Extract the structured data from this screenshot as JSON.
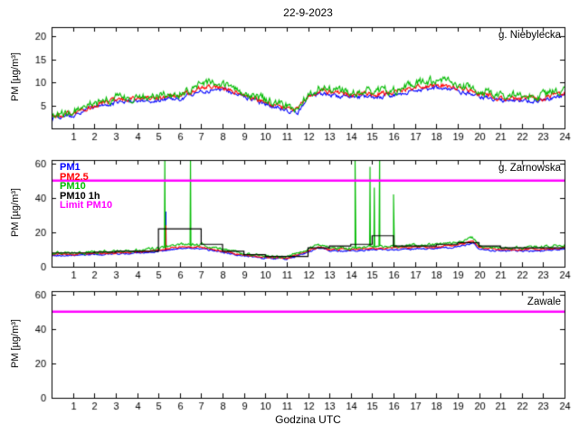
{
  "chart_data": {
    "type": "line",
    "figure_title": "22-9-2023",
    "xlabel": "Godzina UTC",
    "ylabel": "PM [µg/m³]",
    "xlim": [
      0,
      24
    ],
    "x_ticks": [
      1,
      2,
      3,
      4,
      5,
      6,
      7,
      8,
      9,
      10,
      11,
      12,
      13,
      14,
      15,
      16,
      17,
      18,
      19,
      20,
      21,
      22,
      23,
      24
    ],
    "grid": false,
    "subplots": [
      {
        "station": "g. Niebylecka",
        "ylim": [
          0,
          22
        ],
        "y_ticks": [
          5,
          10,
          15,
          20
        ],
        "x": [
          0,
          1,
          2,
          3,
          4,
          5,
          6,
          7,
          8,
          9,
          10,
          11,
          11.5,
          12,
          12.5,
          13,
          14,
          15,
          16,
          17,
          18,
          19,
          20,
          21,
          22,
          23,
          24
        ],
        "series": [
          {
            "name": "PM1",
            "color": "#0000ff",
            "noise": 0.45,
            "values": [
              2.1,
              2.9,
              4.6,
              5.6,
              6.0,
              6.0,
              6.5,
              8.2,
              8.3,
              6.9,
              5.2,
              4.0,
              3.4,
              6.4,
              7.6,
              7.3,
              6.8,
              6.9,
              7.1,
              8.3,
              8.8,
              8.2,
              7.0,
              6.0,
              5.9,
              6.1,
              7.3
            ]
          },
          {
            "name": "PM2.5",
            "color": "#ff0000",
            "noise": 0.5,
            "values": [
              2.4,
              3.2,
              5.0,
              6.1,
              6.5,
              6.5,
              7.0,
              8.9,
              9.0,
              7.4,
              5.6,
              4.4,
              3.8,
              7.0,
              8.2,
              7.9,
              7.4,
              7.5,
              7.7,
              9.0,
              9.6,
              8.9,
              7.6,
              6.5,
              6.4,
              6.6,
              7.9
            ]
          },
          {
            "name": "PM10",
            "color": "#00bb00",
            "noise": 0.85,
            "values": [
              2.8,
              3.6,
              5.5,
              6.6,
              7.0,
              7.0,
              7.6,
              9.6,
              9.7,
              8.0,
              6.2,
              5.0,
              4.2,
              7.6,
              8.9,
              8.6,
              8.0,
              8.1,
              8.3,
              9.7,
              10.4,
              9.6,
              8.2,
              7.1,
              7.0,
              7.2,
              8.6
            ]
          }
        ]
      },
      {
        "station": "g. Zarnowska",
        "ylim": [
          0,
          62
        ],
        "y_ticks": [
          0,
          20,
          40,
          60
        ],
        "x": [
          0,
          1,
          2,
          3,
          4,
          5,
          6,
          7,
          8,
          9,
          10,
          11,
          12,
          12.5,
          13,
          14,
          15,
          16,
          17,
          18,
          19,
          19.7,
          20,
          21,
          22,
          23,
          24
        ],
        "series": [
          {
            "name": "PM1",
            "color": "#0000ff",
            "noise": 0.45,
            "values": [
              6.5,
              6.5,
              7.0,
              7.4,
              7.9,
              8.8,
              10.5,
              10.5,
              8.3,
              6.3,
              5.0,
              4.6,
              8.3,
              10.8,
              9.2,
              9.2,
              9.9,
              9.9,
              10.3,
              10.8,
              11.5,
              13.8,
              10.0,
              9.2,
              9.2,
              9.5,
              10.5
            ],
            "spikes": [
              [
                5.35,
                32
              ]
            ]
          },
          {
            "name": "PM2.5",
            "color": "#ff0000",
            "noise": 0.5,
            "values": [
              7.0,
              7.0,
              7.5,
              8.0,
              8.5,
              9.5,
              11.5,
              11.5,
              9.0,
              6.8,
              5.4,
              5.0,
              9.0,
              11.8,
              10.0,
              10.0,
              10.8,
              10.8,
              11.2,
              11.8,
              12.5,
              15.0,
              10.8,
              10.0,
              10.0,
              10.3,
              11.5
            ],
            "spikes": [
              [
                5.35,
                24
              ]
            ]
          },
          {
            "name": "PM10",
            "color": "#00bb00",
            "noise": 0.8,
            "values": [
              8.0,
              8.0,
              8.5,
              9.0,
              9.5,
              10.5,
              13.0,
              13.0,
              10.0,
              7.5,
              6.0,
              5.5,
              10.0,
              13.0,
              11.0,
              11.0,
              12.0,
              12.0,
              12.5,
              13.0,
              14.0,
              17.0,
              12.0,
              11.0,
              11.0,
              11.5,
              13.0
            ],
            "spikes": [
              [
                5.3,
                65
              ],
              [
                6.5,
                65
              ],
              [
                14.2,
                65
              ],
              [
                14.9,
                58
              ],
              [
                15.1,
                46
              ],
              [
                15.35,
                65
              ],
              [
                16.0,
                42
              ]
            ]
          }
        ],
        "step_series": {
          "name": "PM10 1h",
          "color": "#000000",
          "values": [
            8,
            8,
            8.5,
            9,
            9,
            22,
            22,
            13,
            9,
            7,
            6,
            6,
            11,
            12,
            13,
            18,
            12,
            12,
            13,
            14,
            12,
            11,
            11,
            11
          ]
        },
        "limit": {
          "name": "Limit PM10",
          "color": "#ff00ff",
          "y": 50
        },
        "legend": [
          {
            "label": "PM1",
            "color": "#0000ff"
          },
          {
            "label": "PM2.5",
            "color": "#ff0000"
          },
          {
            "label": "PM10",
            "color": "#00bb00"
          },
          {
            "label": "PM10 1h",
            "color": "#000000"
          },
          {
            "label": "Limit PM10",
            "color": "#ff00ff"
          }
        ]
      },
      {
        "station": "Zawale",
        "ylim": [
          0,
          62
        ],
        "y_ticks": [
          0,
          20,
          40,
          60
        ],
        "x": [
          0,
          24
        ],
        "series": [],
        "limit": {
          "name": "Limit PM10",
          "color": "#ff00ff",
          "y": 50
        }
      }
    ]
  }
}
